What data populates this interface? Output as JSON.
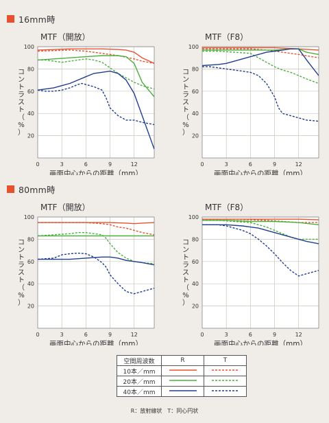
{
  "sections": [
    {
      "heading": "16mm時"
    },
    {
      "heading": "80mm時"
    }
  ],
  "colors": {
    "accent": "#e8512d",
    "R": "#e8512d",
    "G": "#4ab03c",
    "B": "#1f3d8f"
  },
  "chart_data": [
    {
      "type": "line",
      "title": "MTF（開放）",
      "xlabel": "画面中心からの距離（mm）",
      "ylabel": "コントラスト（%）",
      "xlim": [
        0,
        14.5
      ],
      "ylim": [
        0,
        100
      ],
      "xticks": [
        0,
        3,
        6,
        9,
        12
      ],
      "yticks": [
        20,
        40,
        60,
        80,
        100
      ],
      "series": [
        {
          "color": "R",
          "dash": false,
          "x": [
            0,
            2,
            4,
            6,
            8,
            10,
            11,
            12,
            13,
            14.5
          ],
          "y": [
            97,
            97.5,
            98,
            98,
            98,
            97.5,
            97,
            95,
            90,
            85
          ]
        },
        {
          "color": "R",
          "dash": true,
          "x": [
            0,
            2,
            4,
            6,
            8,
            10,
            12,
            13,
            14.5
          ],
          "y": [
            96,
            96.5,
            97,
            96,
            94,
            92,
            89,
            87,
            85
          ]
        },
        {
          "color": "G",
          "dash": false,
          "x": [
            0,
            2,
            4,
            6,
            8,
            10,
            11,
            12,
            13,
            14.5
          ],
          "y": [
            88,
            89,
            90,
            91,
            92,
            92,
            91,
            85,
            68,
            55
          ]
        },
        {
          "color": "G",
          "dash": true,
          "x": [
            0,
            1,
            2,
            3,
            4,
            5,
            6,
            7,
            8,
            9,
            10,
            11,
            12,
            13,
            14.5
          ],
          "y": [
            88,
            88,
            87,
            86,
            87,
            88,
            89,
            88,
            86,
            81,
            76,
            72,
            68,
            65,
            62
          ]
        },
        {
          "color": "B",
          "dash": false,
          "x": [
            0,
            1,
            2,
            3,
            4,
            5,
            6,
            7,
            8,
            9,
            10,
            11,
            12,
            13,
            14.5
          ],
          "y": [
            61,
            62,
            63,
            65,
            67,
            70,
            73,
            76,
            77,
            78,
            76,
            70,
            58,
            38,
            8
          ]
        },
        {
          "color": "B",
          "dash": true,
          "x": [
            0,
            1,
            2,
            3,
            4,
            5,
            5.5,
            6,
            7,
            8,
            8.5,
            9,
            10,
            11,
            12,
            13,
            14.5
          ],
          "y": [
            61,
            60,
            60,
            61,
            63,
            66,
            67,
            66,
            64,
            61,
            54,
            45,
            38,
            34,
            34,
            32,
            30
          ]
        }
      ]
    },
    {
      "type": "line",
      "title": "MTF（F8）",
      "xlabel": "画面中心からの距離（mm）",
      "ylabel": "コントラスト（%）",
      "xlim": [
        0,
        14.5
      ],
      "ylim": [
        0,
        100
      ],
      "xticks": [
        0,
        3,
        6,
        9,
        12
      ],
      "yticks": [
        20,
        40,
        60,
        80,
        100
      ],
      "series": [
        {
          "color": "R",
          "dash": false,
          "x": [
            0,
            3,
            6,
            9,
            12,
            14.5
          ],
          "y": [
            99,
            99,
            99,
            99,
            98,
            97
          ]
        },
        {
          "color": "R",
          "dash": true,
          "x": [
            0,
            3,
            6,
            8,
            9,
            10,
            12,
            14.5
          ],
          "y": [
            98,
            98,
            98,
            97,
            96,
            95,
            93,
            90
          ]
        },
        {
          "color": "G",
          "dash": false,
          "x": [
            0,
            3,
            6,
            9,
            11,
            12,
            13,
            14.5
          ],
          "y": [
            97,
            97,
            97,
            97,
            98,
            98,
            95,
            93
          ]
        },
        {
          "color": "G",
          "dash": true,
          "x": [
            0,
            2,
            4,
            6,
            7,
            8,
            9,
            10,
            11,
            12,
            13,
            14.5
          ],
          "y": [
            96,
            96,
            95,
            94,
            90,
            86,
            82,
            79,
            77,
            74,
            71,
            67
          ]
        },
        {
          "color": "B",
          "dash": false,
          "x": [
            0,
            2,
            3,
            4,
            5,
            6,
            7,
            8,
            9,
            10,
            11,
            12,
            13,
            14.5
          ],
          "y": [
            83,
            84,
            85,
            87,
            89,
            91,
            93,
            95,
            96,
            97,
            98,
            98,
            88,
            74
          ]
        },
        {
          "color": "B",
          "dash": true,
          "x": [
            0,
            1,
            2,
            3,
            4,
            5,
            6,
            7,
            8,
            9,
            9.5,
            10,
            11,
            12,
            13,
            14.5
          ],
          "y": [
            82,
            82,
            81,
            80,
            79,
            78,
            77,
            74,
            67,
            55,
            45,
            40,
            38,
            36,
            34,
            33
          ]
        }
      ]
    },
    {
      "type": "line",
      "title": "MTF（開放）",
      "xlabel": "画面中心からの距離（mm）",
      "ylabel": "コントラスト（%）",
      "xlim": [
        0,
        14.5
      ],
      "ylim": [
        0,
        100
      ],
      "xticks": [
        0,
        3,
        6,
        9,
        12
      ],
      "yticks": [
        20,
        40,
        60,
        80,
        100
      ],
      "series": [
        {
          "color": "R",
          "dash": false,
          "x": [
            0,
            3,
            6,
            9,
            11,
            12,
            13,
            14.5
          ],
          "y": [
            95,
            95,
            95,
            95,
            94.5,
            94,
            94.5,
            95
          ]
        },
        {
          "color": "R",
          "dash": true,
          "x": [
            0,
            3,
            6,
            8,
            9,
            10,
            11,
            12,
            13,
            14.5
          ],
          "y": [
            95,
            95,
            95,
            94,
            93,
            91,
            90,
            88,
            86,
            84
          ]
        },
        {
          "color": "G",
          "dash": false,
          "x": [
            0,
            3,
            6,
            9,
            12,
            14.5
          ],
          "y": [
            83,
            83,
            83,
            83,
            83,
            83
          ]
        },
        {
          "color": "G",
          "dash": true,
          "x": [
            0,
            2,
            4,
            5,
            6,
            7,
            8,
            8.5,
            9,
            10,
            11,
            12,
            13,
            14.5
          ],
          "y": [
            83,
            84,
            85,
            86,
            86,
            85,
            84,
            81,
            76,
            68,
            63,
            60,
            59,
            58
          ]
        },
        {
          "color": "B",
          "dash": false,
          "x": [
            0,
            2,
            4,
            6,
            8,
            9,
            10,
            11,
            12,
            13,
            14.5
          ],
          "y": [
            62,
            62,
            62,
            63,
            64,
            64,
            63,
            61,
            60,
            59,
            57
          ]
        },
        {
          "color": "B",
          "dash": true,
          "x": [
            0,
            2,
            3,
            4,
            5,
            6,
            7,
            8,
            8.5,
            9,
            10,
            11,
            12,
            13,
            14.5
          ],
          "y": [
            62,
            63,
            66,
            67,
            67.5,
            67,
            64,
            59,
            55,
            48,
            40,
            33,
            31,
            33,
            36
          ]
        }
      ]
    },
    {
      "type": "line",
      "title": "MTF（F8）",
      "xlabel": "画面中心からの距離（mm）",
      "ylabel": "コントラスト（%）",
      "xlim": [
        0,
        14.5
      ],
      "ylim": [
        0,
        100
      ],
      "xticks": [
        0,
        3,
        6,
        9,
        12
      ],
      "yticks": [
        20,
        40,
        60,
        80,
        100
      ],
      "series": [
        {
          "color": "R",
          "dash": false,
          "x": [
            0,
            3,
            6,
            9,
            12,
            14.5
          ],
          "y": [
            98,
            98,
            98,
            98,
            98,
            97.5
          ]
        },
        {
          "color": "R",
          "dash": true,
          "x": [
            0,
            3,
            6,
            8,
            9,
            10,
            11,
            12,
            13,
            14.5
          ],
          "y": [
            98,
            98,
            97.5,
            97,
            96.5,
            96,
            95.5,
            95,
            95,
            95
          ]
        },
        {
          "color": "G",
          "dash": false,
          "x": [
            0,
            3,
            6,
            9,
            12,
            14.5
          ],
          "y": [
            97,
            97,
            96,
            96,
            95,
            93
          ]
        },
        {
          "color": "G",
          "dash": true,
          "x": [
            0,
            2,
            4,
            6,
            7,
            8,
            9,
            10,
            11,
            12,
            13,
            14.5
          ],
          "y": [
            97,
            97,
            96,
            95,
            93,
            91,
            88,
            85,
            82,
            80,
            80,
            80
          ]
        },
        {
          "color": "B",
          "dash": false,
          "x": [
            0,
            3,
            5,
            6,
            7,
            8,
            9,
            10,
            11,
            12,
            13,
            14.5
          ],
          "y": [
            93,
            93,
            92,
            91,
            90,
            88,
            86,
            84,
            82,
            80,
            78,
            76
          ]
        },
        {
          "color": "B",
          "dash": true,
          "x": [
            0,
            2,
            3,
            4,
            5,
            6,
            7,
            8,
            9,
            10,
            11,
            12,
            13,
            14.5
          ],
          "y": [
            93,
            93,
            92,
            90,
            88,
            85,
            80,
            74,
            67,
            59,
            52,
            47,
            49,
            52
          ]
        }
      ]
    }
  ],
  "legend": {
    "header": [
      "空間周波数",
      "R",
      "T"
    ],
    "rows": [
      {
        "label": "10本／mm",
        "color": "R"
      },
      {
        "label": "20本／mm",
        "color": "G"
      },
      {
        "label": "40本／mm",
        "color": "B"
      }
    ],
    "note": "R：放射線状　T：同心円状"
  }
}
